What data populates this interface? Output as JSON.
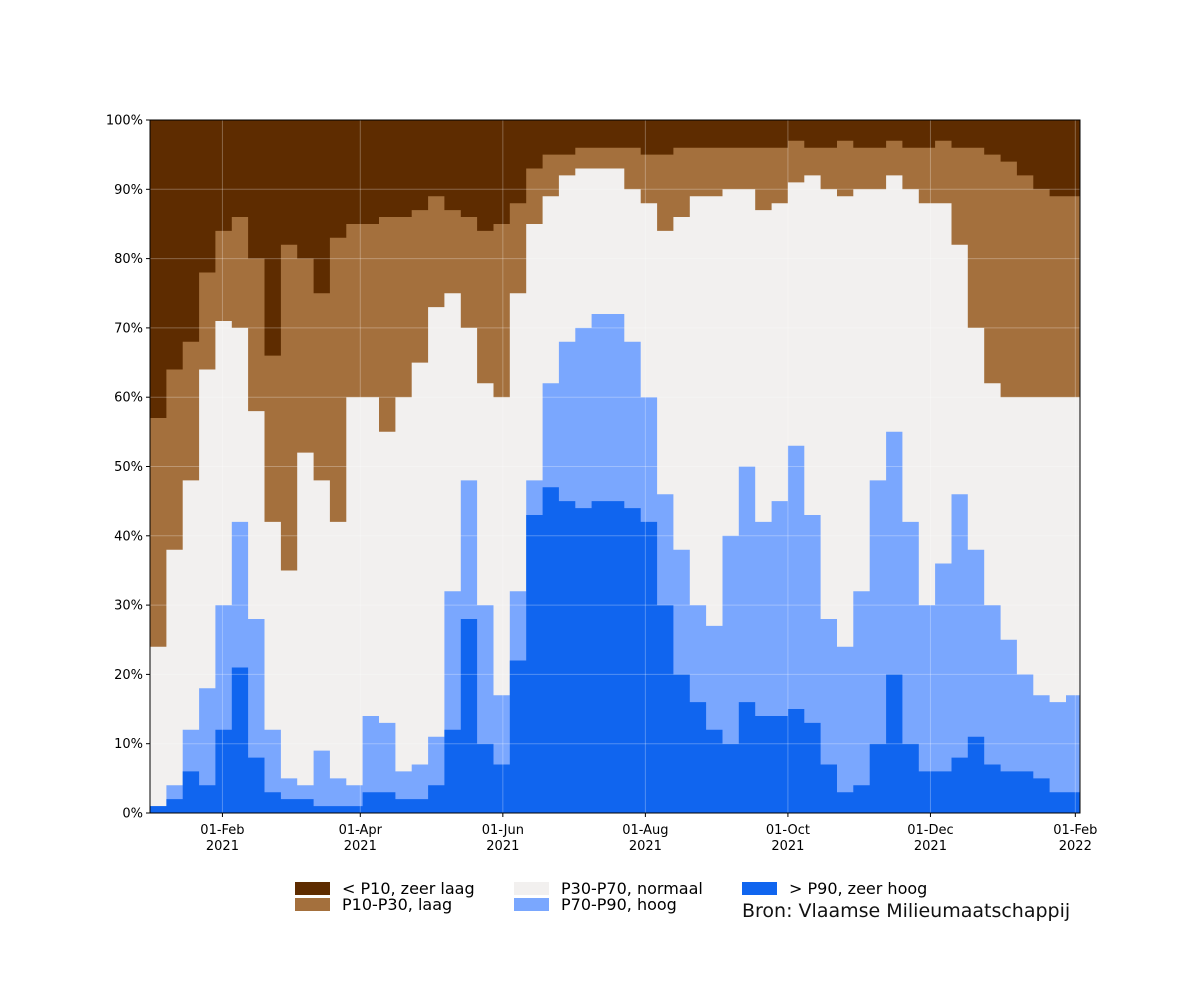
{
  "chart_data": {
    "type": "area",
    "stacked": true,
    "xlabel": "",
    "ylabel": "",
    "x_range": [
      "2021-01-01",
      "2022-02-03"
    ],
    "y_range": [
      0,
      100
    ],
    "y_ticks": [
      "0%",
      "10%",
      "20%",
      "30%",
      "40%",
      "50%",
      "60%",
      "70%",
      "80%",
      "90%",
      "100%"
    ],
    "x_ticks": [
      {
        "date": "2021-02-01",
        "line1": "01-Feb",
        "line2": "2021"
      },
      {
        "date": "2021-04-01",
        "line1": "01-Apr",
        "line2": "2021"
      },
      {
        "date": "2021-06-01",
        "line1": "01-Jun",
        "line2": "2021"
      },
      {
        "date": "2021-08-01",
        "line1": "01-Aug",
        "line2": "2021"
      },
      {
        "date": "2021-10-01",
        "line1": "01-Oct",
        "line2": "2021"
      },
      {
        "date": "2021-12-01",
        "line1": "01-Dec",
        "line2": "2021"
      },
      {
        "date": "2022-02-01",
        "line1": "01-Feb",
        "line2": "2022"
      }
    ],
    "grid": true,
    "legend_position": "bottom",
    "series_order_bottom_to_top": [
      "> P90, zeer hoog",
      "P70-P90, hoog",
      "P30-P70, normaal",
      "P10-P30, laag",
      "< P10, zeer laag"
    ],
    "dates": [
      "2021-01-01",
      "2021-01-08",
      "2021-01-15",
      "2021-01-22",
      "2021-01-29",
      "2021-02-05",
      "2021-02-12",
      "2021-02-19",
      "2021-02-26",
      "2021-03-05",
      "2021-03-12",
      "2021-03-19",
      "2021-03-26",
      "2021-04-02",
      "2021-04-09",
      "2021-04-16",
      "2021-04-23",
      "2021-04-30",
      "2021-05-07",
      "2021-05-14",
      "2021-05-21",
      "2021-05-28",
      "2021-06-04",
      "2021-06-11",
      "2021-06-18",
      "2021-06-25",
      "2021-07-02",
      "2021-07-09",
      "2021-07-16",
      "2021-07-23",
      "2021-07-30",
      "2021-08-06",
      "2021-08-13",
      "2021-08-20",
      "2021-08-27",
      "2021-09-03",
      "2021-09-10",
      "2021-09-17",
      "2021-09-24",
      "2021-10-01",
      "2021-10-08",
      "2021-10-15",
      "2021-10-22",
      "2021-10-29",
      "2021-11-05",
      "2021-11-12",
      "2021-11-19",
      "2021-11-26",
      "2021-12-03",
      "2021-12-10",
      "2021-12-17",
      "2021-12-24",
      "2021-12-31",
      "2022-01-07",
      "2022-01-14",
      "2022-01-21",
      "2022-01-28",
      "2022-02-03"
    ],
    "cumulative_upper_bounds": {
      "> P90, zeer hoog": [
        1,
        2,
        6,
        4,
        12,
        21,
        8,
        3,
        2,
        2,
        1,
        1,
        1,
        3,
        3,
        2,
        2,
        4,
        12,
        28,
        10,
        7,
        22,
        43,
        47,
        45,
        44,
        45,
        45,
        44,
        42,
        30,
        20,
        16,
        12,
        10,
        16,
        14,
        14,
        15,
        13,
        7,
        3,
        4,
        10,
        20,
        10,
        6,
        6,
        8,
        11,
        7,
        6,
        6,
        5,
        3,
        3,
        3
      ],
      "P70-P90, hoog": [
        1,
        4,
        12,
        18,
        30,
        42,
        28,
        12,
        5,
        4,
        9,
        5,
        4,
        14,
        13,
        6,
        7,
        11,
        32,
        48,
        30,
        17,
        32,
        48,
        62,
        68,
        70,
        72,
        72,
        68,
        60,
        46,
        38,
        30,
        27,
        40,
        50,
        42,
        45,
        53,
        43,
        28,
        24,
        32,
        48,
        55,
        42,
        30,
        36,
        46,
        38,
        30,
        25,
        20,
        17,
        16,
        17,
        17
      ],
      "P30-P70, normaal": [
        24,
        38,
        48,
        64,
        71,
        70,
        58,
        42,
        35,
        52,
        48,
        42,
        60,
        60,
        55,
        60,
        65,
        73,
        75,
        70,
        62,
        60,
        75,
        85,
        89,
        92,
        93,
        93,
        93,
        90,
        88,
        84,
        86,
        89,
        89,
        90,
        90,
        87,
        88,
        91,
        92,
        90,
        89,
        90,
        90,
        92,
        90,
        88,
        88,
        82,
        70,
        62,
        60,
        60,
        60,
        60,
        60,
        60
      ],
      "P10-P30, laag": [
        57,
        64,
        68,
        78,
        84,
        86,
        80,
        66,
        82,
        80,
        75,
        83,
        85,
        85,
        86,
        86,
        87,
        89,
        87,
        86,
        84,
        85,
        88,
        93,
        95,
        95,
        96,
        96,
        96,
        96,
        95,
        95,
        96,
        96,
        96,
        96,
        96,
        96,
        96,
        97,
        96,
        96,
        97,
        96,
        96,
        97,
        96,
        96,
        97,
        96,
        96,
        95,
        94,
        92,
        90,
        89,
        89,
        89
      ]
    },
    "series": [
      {
        "name": "< P10, zeer laag",
        "color": "#5e2c00"
      },
      {
        "name": "P10-P30, laag",
        "color": "#a4703d"
      },
      {
        "name": "P30-P70, normaal",
        "color": "#f2f0ef"
      },
      {
        "name": "P70-P90, hoog",
        "color": "#7aa7fe"
      },
      {
        "name": "> P90, zeer hoog",
        "color": "#1065ef"
      }
    ]
  },
  "legend": {
    "items": [
      {
        "label": "< P10, zeer laag",
        "color": "#5e2c00"
      },
      {
        "label": "P10-P30, laag",
        "color": "#a4703d"
      },
      {
        "label": "P30-P70, normaal",
        "color": "#f2f0ef"
      },
      {
        "label": "P70-P90, hoog",
        "color": "#7aa7fe"
      },
      {
        "label": "> P90, zeer hoog",
        "color": "#1065ef"
      }
    ]
  },
  "source": "Bron: Vlaamse Milieumaatschappij"
}
